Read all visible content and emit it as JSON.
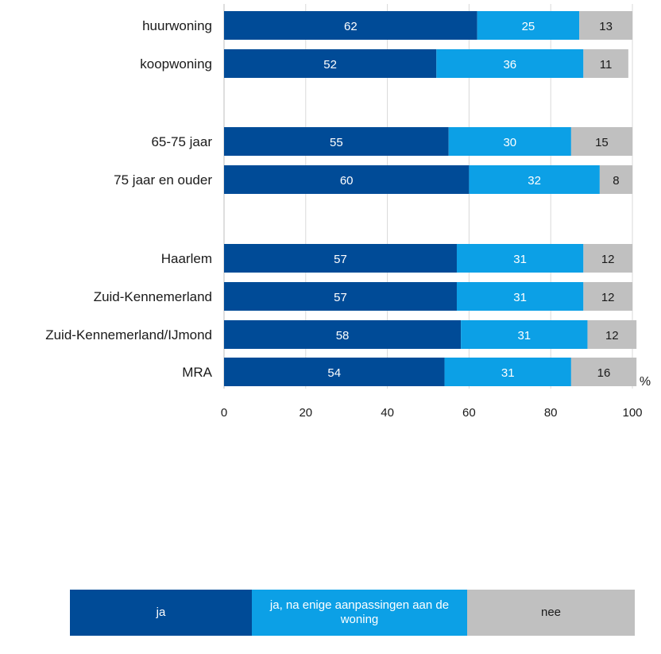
{
  "chart_data": {
    "type": "bar",
    "orientation": "horizontal",
    "stacked": true,
    "unit": "%",
    "xlim": [
      0,
      100
    ],
    "x_ticks": [
      "0",
      "20",
      "40",
      "60",
      "80",
      "100"
    ],
    "grid": true,
    "categories": [
      "huurwoning",
      "koopwoning",
      "65-75 jaar",
      "75 jaar en ouder",
      "Haarlem",
      "Zuid-Kennemerland",
      "Zuid-Kennemerland/IJmond",
      "MRA"
    ],
    "series": [
      {
        "name": "ja",
        "color": "#004b97",
        "label_color": "#ffffff",
        "values": [
          62,
          52,
          55,
          60,
          57,
          57,
          58,
          54
        ]
      },
      {
        "name": "ja, na enige aanpassingen aan de woning",
        "color": "#0ca0e6",
        "label_color": "#ffffff",
        "values": [
          25,
          36,
          30,
          32,
          31,
          31,
          31,
          31
        ]
      },
      {
        "name": "nee",
        "color": "#c0c0c0",
        "label_color": "#1a1a1a",
        "values": [
          13,
          11,
          15,
          8,
          12,
          12,
          12,
          16
        ]
      }
    ],
    "legend_position": "bottom"
  },
  "legend": [
    {
      "label": "ja",
      "color": "#004b97",
      "text_color": "#ffffff"
    },
    {
      "label": "ja, na enige aanpassingen aan de woning",
      "color": "#0ca0e6",
      "text_color": "#ffffff"
    },
    {
      "label": "nee",
      "color": "#c0c0c0",
      "text_color": "#1a1a1a"
    }
  ]
}
